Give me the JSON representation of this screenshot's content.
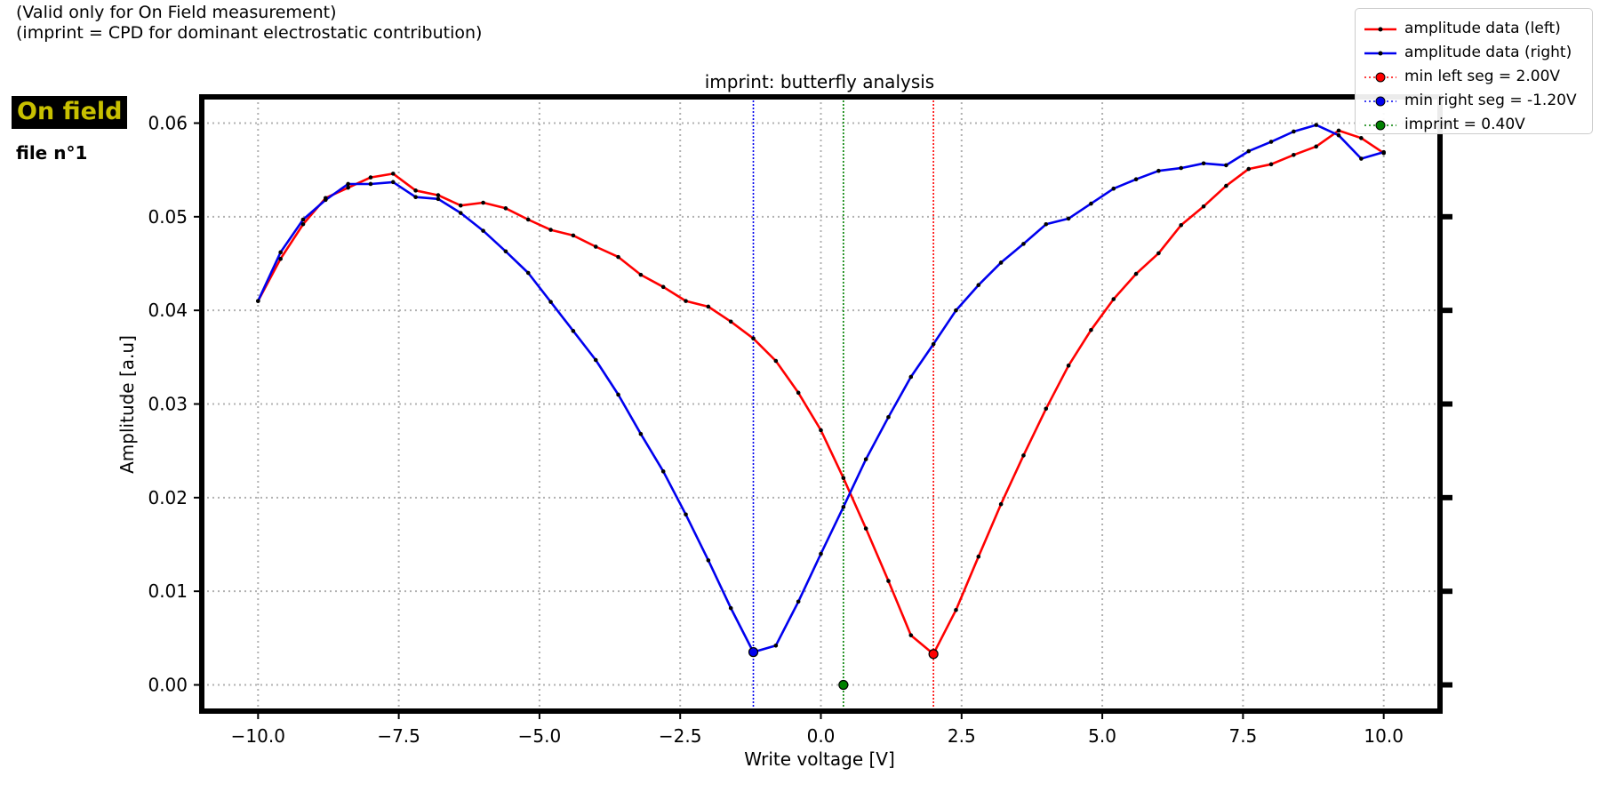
{
  "header": {
    "note_line1": "(Valid only for On Field measurement)",
    "note_line2": "(imprint = CPD for dominant electrostatic contribution)",
    "mode_badge": "On field",
    "file_label": "file n°1"
  },
  "colors": {
    "left_series": "#ff0000",
    "right_series": "#0000ee",
    "imprint": "#008000",
    "badge_text": "#c8c000",
    "badge_bg": "#000000"
  },
  "chart_data": {
    "type": "line",
    "title": "imprint: butterfly analysis",
    "xlabel": "Write voltage [V]",
    "ylabel": "Amplitude [a.u]",
    "xlim": [
      -11,
      11
    ],
    "ylim": [
      -0.0028,
      0.0628
    ],
    "xticks": [
      -10.0,
      -7.5,
      -5.0,
      -2.5,
      0.0,
      2.5,
      5.0,
      7.5,
      10.0
    ],
    "xtick_labels": [
      "−10.0",
      "−7.5",
      "−5.0",
      "−2.5",
      "0.0",
      "2.5",
      "5.0",
      "7.5",
      "10.0"
    ],
    "yticks": [
      0.0,
      0.01,
      0.02,
      0.03,
      0.04,
      0.05,
      0.06
    ],
    "ytick_labels": [
      "0.00",
      "0.01",
      "0.02",
      "0.03",
      "0.04",
      "0.05",
      "0.06"
    ],
    "grid": true,
    "legend_position": "top-right",
    "x": [
      -10.0,
      -9.6,
      -9.2,
      -8.8,
      -8.4,
      -8.0,
      -7.6,
      -7.2,
      -6.8,
      -6.4,
      -6.0,
      -5.6,
      -5.2,
      -4.8,
      -4.4,
      -4.0,
      -3.6,
      -3.2,
      -2.8,
      -2.4,
      -2.0,
      -1.6,
      -1.2,
      -0.8,
      -0.4,
      0.0,
      0.4,
      0.8,
      1.2,
      1.6,
      2.0,
      2.4,
      2.8,
      3.2,
      3.6,
      4.0,
      4.4,
      4.8,
      5.2,
      5.6,
      6.0,
      6.4,
      6.8,
      7.2,
      7.6,
      8.0,
      8.4,
      8.8,
      9.2,
      9.6,
      10.0
    ],
    "series": [
      {
        "name": "amplitude data (left)",
        "values": [
          0.041,
          0.0455,
          0.0492,
          0.052,
          0.0531,
          0.0542,
          0.0546,
          0.0528,
          0.0523,
          0.0512,
          0.0515,
          0.0509,
          0.0497,
          0.0486,
          0.048,
          0.0468,
          0.0457,
          0.0438,
          0.0425,
          0.041,
          0.0404,
          0.0388,
          0.037,
          0.0346,
          0.0312,
          0.0272,
          0.0221,
          0.0167,
          0.0111,
          0.0053,
          0.0033,
          0.008,
          0.0137,
          0.0193,
          0.0245,
          0.0295,
          0.0341,
          0.0379,
          0.0412,
          0.0439,
          0.0461,
          0.0491,
          0.0511,
          0.0533,
          0.0551,
          0.0556,
          0.0566,
          0.0575,
          0.0592,
          0.0584,
          0.0568
        ]
      },
      {
        "name": "amplitude data (right)",
        "values": [
          0.041,
          0.0462,
          0.0497,
          0.0518,
          0.0535,
          0.0535,
          0.0537,
          0.0521,
          0.0519,
          0.0504,
          0.0485,
          0.0463,
          0.044,
          0.0409,
          0.0378,
          0.0347,
          0.031,
          0.0268,
          0.0228,
          0.0182,
          0.0133,
          0.0082,
          0.0035,
          0.0042,
          0.0089,
          0.014,
          0.019,
          0.0241,
          0.0286,
          0.0329,
          0.0364,
          0.04,
          0.0427,
          0.0451,
          0.0471,
          0.0492,
          0.0498,
          0.0514,
          0.053,
          0.054,
          0.0549,
          0.0552,
          0.0557,
          0.0555,
          0.057,
          0.058,
          0.0591,
          0.0598,
          0.0587,
          0.0562,
          0.0569
        ]
      }
    ],
    "markers": [
      {
        "name": "min left seg = 2.00V",
        "x": 2.0,
        "y": 0.0033,
        "color": "#ff0000"
      },
      {
        "name": "min right seg = -1.20V",
        "x": -1.2,
        "y": 0.0035,
        "color": "#0000ee"
      },
      {
        "name": "imprint = 0.40V",
        "x": 0.4,
        "y": 0.0,
        "color": "#008000"
      }
    ]
  }
}
